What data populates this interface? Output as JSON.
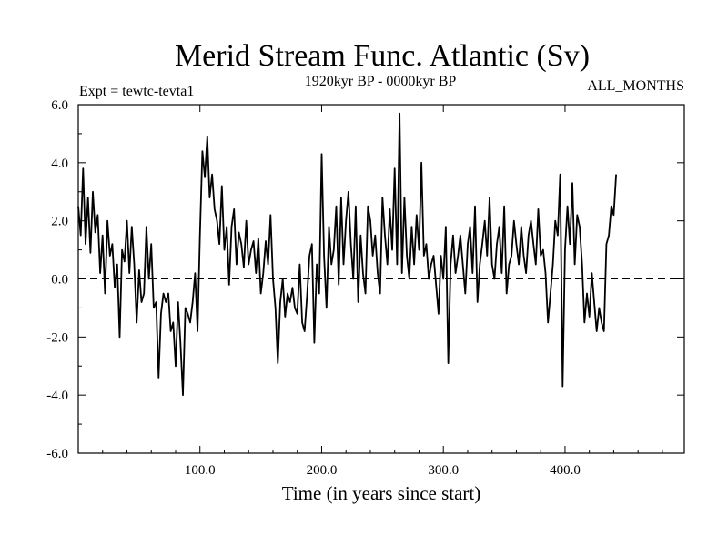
{
  "chart_data": {
    "type": "line",
    "title": "Merid Stream Func. Atlantic (Sv)",
    "experiment_label": "Expt = tewtc-tevta1",
    "period_label": "1920kyr BP - 0000kyr BP",
    "months_label": "ALL_MONTHS",
    "xlabel": "Time (in years since start)",
    "ylabel": "",
    "xlim": [
      0,
      498
    ],
    "ylim": [
      -6,
      6
    ],
    "x_tick_values": [
      100,
      200,
      300,
      400
    ],
    "x_tick_labels": [
      "100.0",
      "200.0",
      "300.0",
      "400.0"
    ],
    "y_tick_values": [
      6,
      4,
      2,
      0,
      -2,
      -4,
      -6
    ],
    "y_tick_labels": [
      "6.0",
      "4.0",
      "2.0",
      "0.0",
      "-2.0",
      "-4.0",
      "-6.0"
    ],
    "reference_line": {
      "y": 0,
      "style": "dashed"
    },
    "series": [
      {
        "name": "Merid Stream Func. Atlantic",
        "x_start": 0,
        "x_step": 2,
        "values": [
          2.5,
          1.5,
          3.8,
          1.2,
          2.8,
          0.9,
          3.0,
          1.6,
          2.2,
          0.2,
          1.5,
          -0.5,
          2.0,
          0.8,
          1.2,
          -0.3,
          0.5,
          -2.0,
          1.0,
          0.6,
          2.0,
          0.2,
          1.8,
          0.5,
          -1.5,
          0.3,
          -0.8,
          -0.5,
          1.8,
          0.0,
          1.2,
          -1.0,
          -0.8,
          -3.4,
          -1.2,
          -0.5,
          -0.8,
          -0.5,
          -1.8,
          -1.5,
          -3.0,
          -0.8,
          -2.2,
          -4.0,
          -1.0,
          -1.2,
          -1.5,
          -0.8,
          0.2,
          -1.8,
          1.5,
          4.4,
          3.5,
          4.9,
          2.8,
          3.6,
          2.4,
          2.0,
          1.2,
          3.2,
          1.0,
          1.8,
          -0.2,
          1.8,
          2.4,
          0.5,
          1.6,
          1.2,
          0.4,
          2.0,
          0.5,
          1.0,
          1.3,
          0.2,
          1.4,
          -0.5,
          0.2,
          1.3,
          0.5,
          2.2,
          0.0,
          -1.0,
          -2.9,
          -0.8,
          0.0,
          -1.3,
          -0.5,
          -0.8,
          -0.3,
          -1.0,
          -1.2,
          0.5,
          -1.5,
          -1.8,
          -0.6,
          0.8,
          1.2,
          -2.2,
          0.5,
          -0.5,
          4.3,
          0.8,
          -1.0,
          1.8,
          0.5,
          1.0,
          2.5,
          -0.2,
          2.8,
          0.5,
          2.0,
          3.0,
          1.2,
          0.0,
          2.5,
          -0.8,
          1.5,
          0.2,
          -0.5,
          2.5,
          2.0,
          0.8,
          1.5,
          0.2,
          -0.5,
          2.8,
          1.5,
          0.5,
          2.4,
          1.0,
          3.8,
          0.5,
          5.7,
          0.2,
          2.8,
          0.8,
          0.0,
          1.8,
          0.5,
          2.2,
          1.0,
          4.0,
          0.8,
          1.2,
          0.0,
          0.5,
          0.8,
          -0.2,
          -1.2,
          0.8,
          0.0,
          1.8,
          -2.9,
          0.5,
          1.5,
          0.2,
          0.8,
          1.5,
          0.5,
          -0.5,
          1.2,
          1.8,
          0.2,
          2.5,
          -0.8,
          0.5,
          1.2,
          2.0,
          0.8,
          2.8,
          0.5,
          0.0,
          1.2,
          1.8,
          0.2,
          2.5,
          -0.5,
          0.5,
          0.8,
          2.0,
          1.2,
          0.5,
          1.8,
          0.8,
          0.2,
          1.5,
          2.0,
          1.2,
          0.5,
          2.4,
          0.8,
          1.0,
          0.2,
          -1.5,
          -0.5,
          0.5,
          2.0,
          1.5,
          3.6,
          -3.7,
          1.0,
          2.5,
          1.2,
          3.3,
          0.5,
          2.2,
          1.8,
          0.5,
          -1.5,
          -0.5,
          -1.3,
          0.2,
          -0.8,
          -1.8,
          -1.0,
          -1.5,
          -1.8,
          1.2,
          1.5,
          2.5,
          2.2,
          3.6
        ]
      }
    ]
  }
}
